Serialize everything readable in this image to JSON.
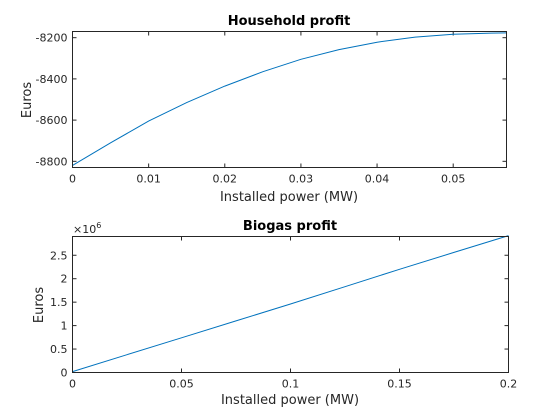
{
  "chart_data": [
    {
      "type": "line",
      "title": "Household profit",
      "xlabel": "Installed power (MW)",
      "ylabel": "Euros",
      "xlim": [
        0,
        0.057
      ],
      "ylim": [
        -8830,
        -8170
      ],
      "xticks": [
        0,
        0.01,
        0.02,
        0.03,
        0.04,
        0.05
      ],
      "xtick_labels": [
        "0",
        "0.01",
        "0.02",
        "0.03",
        "0.04",
        "0.05"
      ],
      "yticks": [
        -8800,
        -8600,
        -8400,
        -8200
      ],
      "ytick_labels": [
        "-8800",
        "-8600",
        "-8400",
        "-8200"
      ],
      "grid": false,
      "color": "#0072bd",
      "x": [
        0,
        0.005,
        0.01,
        0.015,
        0.02,
        0.025,
        0.03,
        0.035,
        0.04,
        0.045,
        0.05,
        0.055,
        0.057
      ],
      "y": [
        -8820,
        -8710,
        -8605,
        -8515,
        -8435,
        -8365,
        -8305,
        -8258,
        -8222,
        -8197,
        -8183,
        -8178,
        -8177
      ]
    },
    {
      "type": "line",
      "title": "Biogas profit",
      "xlabel": "Installed power (MW)",
      "ylabel": "Euros",
      "exponent_label": "×10^6",
      "xlim": [
        0,
        0.2
      ],
      "ylim": [
        0,
        2.9
      ],
      "xticks": [
        0,
        0.05,
        0.1,
        0.15,
        0.2
      ],
      "xtick_labels": [
        "0",
        "0.05",
        "0.1",
        "0.15",
        "0.2"
      ],
      "yticks": [
        0,
        0.5,
        1,
        1.5,
        2,
        2.5
      ],
      "ytick_labels": [
        "0",
        "0.5",
        "1",
        "1.5",
        "2",
        "2.5"
      ],
      "grid": false,
      "color": "#0072bd",
      "x": [
        0,
        0.025,
        0.05,
        0.075,
        0.1,
        0.125,
        0.15,
        0.175,
        0.2
      ],
      "y": [
        0.02,
        0.38,
        0.74,
        1.1,
        1.46,
        1.83,
        2.2,
        2.56,
        2.92
      ]
    }
  ]
}
